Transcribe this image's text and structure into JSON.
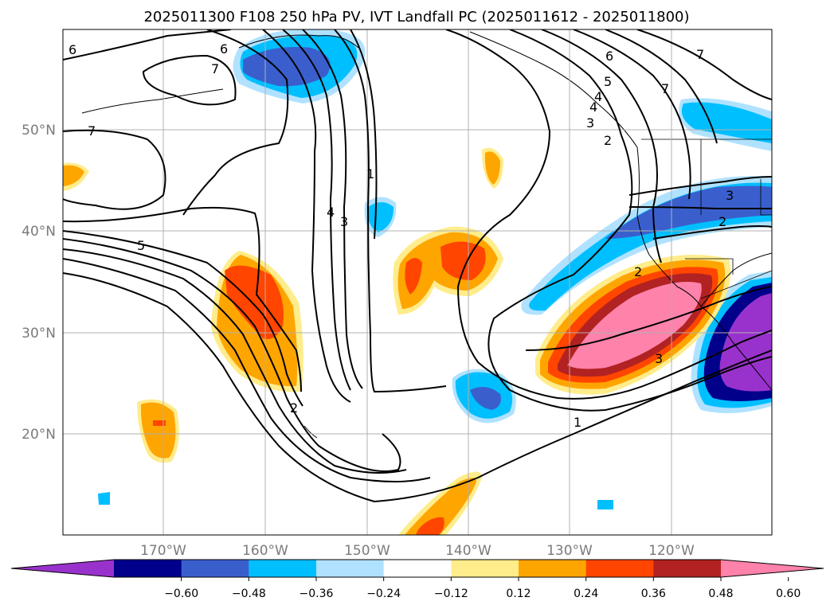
{
  "title": "2025011300 F108 250 hPa PV, IVT Landfall PC (2025011612 - 2025011800)",
  "lat_labels": [
    "50°N",
    "40°N",
    "30°N",
    "20°N"
  ],
  "lon_labels": [
    "170°W",
    "160°W",
    "150°W",
    "140°W",
    "130°W",
    "120°W"
  ],
  "colorbar": {
    "ticks": [
      "−0.60",
      "−0.48",
      "−0.36",
      "−0.24",
      "−0.12",
      "0.12",
      "0.24",
      "0.36",
      "0.48",
      "0.60"
    ],
    "colors": [
      "#9932cc",
      "#00008b",
      "#3a5fcd",
      "#00bfff",
      "#b0e2ff",
      "#ffffff",
      "#ffec8b",
      "#ffa500",
      "#ff4500",
      "#b22222",
      "#ff82ab"
    ]
  },
  "contour_labels": [
    "6",
    "7",
    "6",
    "7",
    "5",
    "4",
    "3",
    "1",
    "4",
    "3",
    "2",
    "2",
    "3",
    "2",
    "2",
    "1",
    "3",
    "6",
    "5",
    "4",
    "7",
    "7"
  ]
}
